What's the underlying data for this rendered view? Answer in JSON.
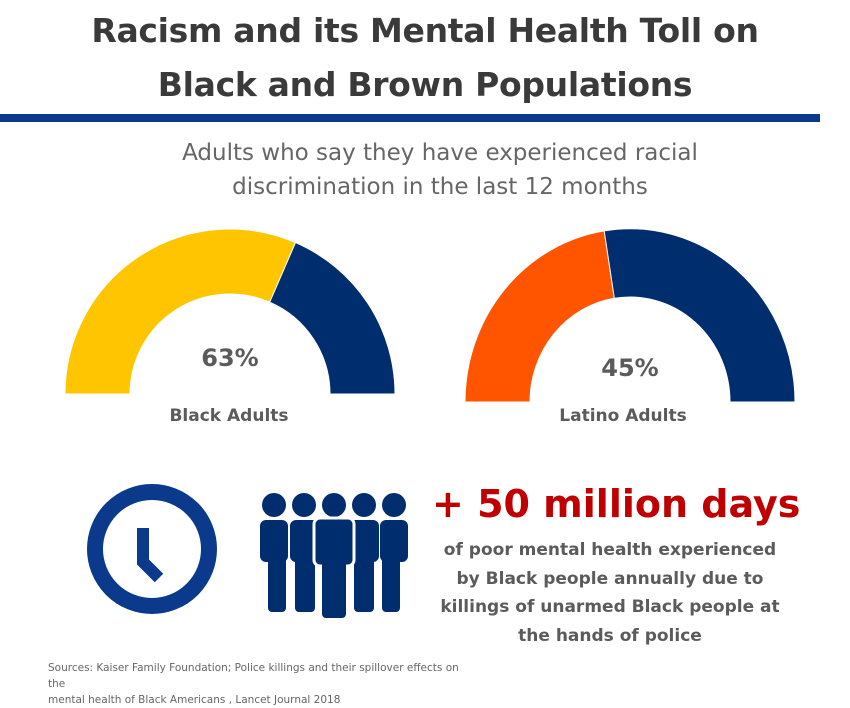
{
  "title": [
    "Racism and its Mental Health Toll on",
    "Black and Brown Populations"
  ],
  "subtitle": [
    "Adults who say they have experienced racial",
    "discrimination in the last 12 months"
  ],
  "colors": {
    "title": "#3a3a3a",
    "rule": "#0b3a8c",
    "navy": "#002d6e",
    "yellow": "#ffc600",
    "orange": "#ff5400",
    "red": "#c00000",
    "icon_blue": "#0b3a8c"
  },
  "chart_data": [
    {
      "type": "pie",
      "style": "semicircle-gauge",
      "label": "Black Adults",
      "value_label": "63%",
      "values": [
        63,
        37
      ],
      "colors": [
        "#ffc600",
        "#002d6e"
      ]
    },
    {
      "type": "pie",
      "style": "semicircle-gauge",
      "label": "Latino Adults",
      "value_label": "45%",
      "values": [
        45,
        55
      ],
      "colors": [
        "#ff5400",
        "#002d6e"
      ]
    }
  ],
  "stat": {
    "headline": "+ 50 million days",
    "description": [
      "of poor mental health experienced",
      "by Black people annually due to",
      "killings of unarmed Black people at",
      "the hands of police"
    ]
  },
  "icons": [
    "clock-icon",
    "people-group-icon"
  ],
  "sources": [
    "Sources: Kaiser Family Foundation; Police killings and their spillover effects on the",
    "mental health of Black Americans , Lancet Journal 2018"
  ]
}
